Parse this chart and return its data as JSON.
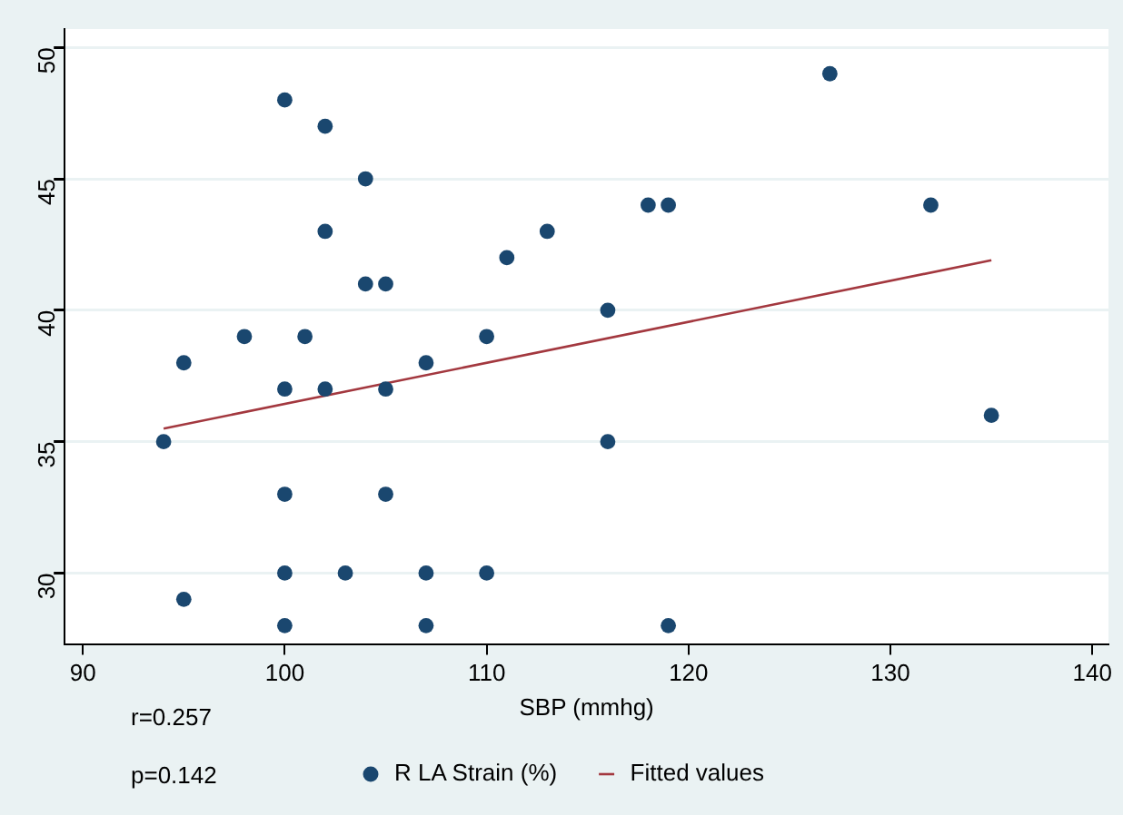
{
  "chart_data": {
    "type": "scatter",
    "xlabel": "SBP (mmhg)",
    "xlim": [
      89.1,
      140.8
    ],
    "xticks": [
      90,
      100,
      110,
      120,
      130,
      140
    ],
    "ylim": [
      27.3,
      50.7
    ],
    "yticks": [
      30,
      35,
      40,
      45,
      50
    ],
    "grid": "y",
    "legend": "bottom",
    "marker": "circle",
    "annotations": [
      "r=0.257",
      "p=0.142"
    ],
    "series": [
      {
        "name": "R LA Strain (%)",
        "color": "#1a476f",
        "x": [
          100,
          102,
          127,
          104,
          118,
          119,
          132,
          102,
          113,
          111,
          104,
          105,
          116,
          98,
          101,
          110,
          95,
          107,
          100,
          102,
          105,
          135,
          94,
          116,
          100,
          105,
          100,
          103,
          107,
          110,
          95,
          100,
          107,
          119
        ],
        "values": [
          48,
          47,
          49,
          45,
          44,
          44,
          44,
          43,
          43,
          42,
          41,
          41,
          40,
          39,
          39,
          39,
          38,
          38,
          37,
          37,
          37,
          36,
          35,
          35,
          33,
          33,
          30,
          30,
          30,
          30,
          29,
          28,
          28,
          28
        ]
      },
      {
        "name": "Fitted values",
        "type": "line",
        "color": "#a3383f",
        "marker": "none",
        "x": [
          94,
          135
        ],
        "values": [
          35.5,
          41.9
        ]
      }
    ]
  }
}
